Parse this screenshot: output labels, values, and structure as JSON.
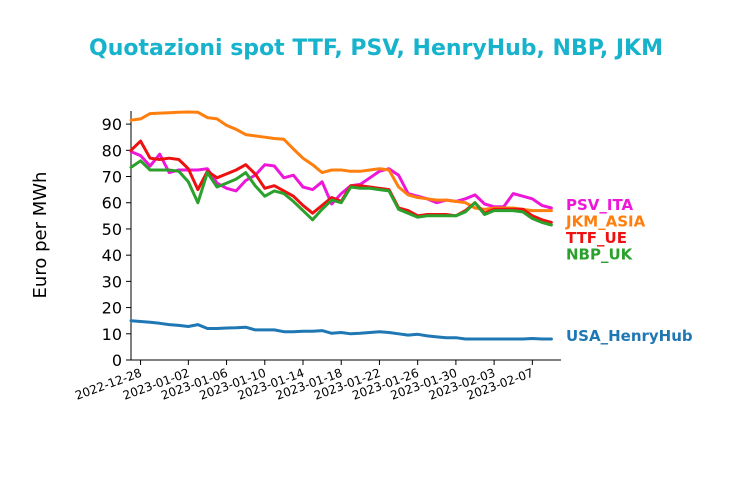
{
  "chart_data": {
    "type": "line",
    "title": "Quotazioni spot TTF, PSV, HenryHub, NBP, JKM",
    "title_color": "#17b3cc",
    "ylabel": "Euro per MWh",
    "xlabel": "",
    "ylim": [
      0,
      95
    ],
    "yticks": [
      0,
      10,
      20,
      30,
      40,
      50,
      60,
      70,
      80,
      90
    ],
    "x_range": [
      "2022-12-27",
      "2023-02-10"
    ],
    "xticks": [
      "2022-12-28",
      "2023-01-02",
      "2023-01-06",
      "2023-01-10",
      "2023-01-14",
      "2023-01-18",
      "2023-01-22",
      "2023-01-26",
      "2023-01-30",
      "2023-02-03",
      "2023-02-07"
    ],
    "grid": false,
    "legend_placement": "right of lines",
    "x": [
      "2022-12-27",
      "2022-12-28",
      "2022-12-29",
      "2022-12-30",
      "2022-12-31",
      "2023-01-01",
      "2023-01-02",
      "2023-01-03",
      "2023-01-04",
      "2023-01-05",
      "2023-01-06",
      "2023-01-07",
      "2023-01-08",
      "2023-01-09",
      "2023-01-10",
      "2023-01-11",
      "2023-01-12",
      "2023-01-13",
      "2023-01-14",
      "2023-01-15",
      "2023-01-16",
      "2023-01-17",
      "2023-01-18",
      "2023-01-19",
      "2023-01-20",
      "2023-01-21",
      "2023-01-22",
      "2023-01-23",
      "2023-01-24",
      "2023-01-25",
      "2023-01-26",
      "2023-01-27",
      "2023-01-28",
      "2023-01-29",
      "2023-01-30",
      "2023-01-31",
      "2023-02-01",
      "2023-02-02",
      "2023-02-03",
      "2023-02-04",
      "2023-02-05",
      "2023-02-06",
      "2023-02-07",
      "2023-02-08",
      "2023-02-09"
    ],
    "series": [
      {
        "name": "PSV_ITA",
        "color": "#ee16d8",
        "values": [
          79.5,
          78,
          74,
          78.5,
          71.5,
          72.5,
          72.5,
          72.5,
          73,
          67.5,
          65.5,
          64.5,
          68.5,
          70.5,
          74.5,
          74,
          69.5,
          70.5,
          66,
          65,
          68,
          59.5,
          63.5,
          66.5,
          67,
          69.5,
          72,
          73,
          70.5,
          63.5,
          62.5,
          61.5,
          60,
          61,
          60.5,
          61.5,
          63,
          59.5,
          58.5,
          58.5,
          63.5,
          62.5,
          61.5,
          59,
          58
        ]
      },
      {
        "name": "JKM_ASIA",
        "color": "#ff7f0e",
        "values": [
          91.5,
          92,
          94,
          94.2,
          94.3,
          94.5,
          94.6,
          94.5,
          92.5,
          92,
          89.5,
          88,
          86,
          85.5,
          85,
          84.5,
          84.2,
          80.5,
          77,
          74.5,
          71.5,
          72.5,
          72.5,
          72,
          72,
          72.5,
          73,
          72.5,
          66,
          63,
          62,
          61.5,
          61,
          61,
          60.5,
          60,
          58,
          57.5,
          58,
          58,
          58,
          57.5,
          57,
          57,
          57
        ]
      },
      {
        "name": "TTF_UE",
        "color": "#ee1111",
        "values": [
          80,
          83.5,
          77,
          76.5,
          77,
          76.5,
          73,
          65,
          72,
          69.5,
          71,
          72.5,
          74.5,
          71,
          65.5,
          66.5,
          64.5,
          62.5,
          59,
          56,
          59,
          62,
          60.5,
          66.5,
          66.5,
          66,
          65.5,
          65,
          58,
          57,
          55,
          55.5,
          55.5,
          55.5,
          55,
          57,
          60,
          56,
          57.5,
          57.5,
          57.5,
          57.5,
          55,
          53.5,
          52.5
        ]
      },
      {
        "name": "NBP_UK",
        "color": "#2ca02c",
        "values": [
          73.5,
          76,
          72.5,
          72.5,
          72.5,
          72,
          68,
          60,
          71.5,
          66,
          67.5,
          69,
          71.5,
          66.5,
          62.5,
          64.5,
          63.5,
          60.5,
          57,
          53.5,
          57.5,
          61,
          60,
          66,
          65.5,
          65.5,
          65,
          64.5,
          57.5,
          56,
          54.5,
          55,
          55,
          55,
          55,
          56.5,
          60,
          55.5,
          57,
          57,
          57,
          56.5,
          54,
          52.5,
          51.5
        ]
      },
      {
        "name": "USA_HenryHub",
        "color": "#1f77b4",
        "values": [
          15,
          14.7,
          14.4,
          14,
          13.5,
          13.2,
          12.8,
          13.5,
          12,
          12,
          12.2,
          12.3,
          12.5,
          11.5,
          11.5,
          11.5,
          10.8,
          10.8,
          11,
          11,
          11.2,
          10.2,
          10.5,
          10,
          10.2,
          10.5,
          10.8,
          10.5,
          10,
          9.5,
          9.8,
          9.2,
          8.8,
          8.5,
          8.5,
          8,
          8,
          8,
          8,
          8,
          8,
          8,
          8.2,
          8,
          8
        ]
      }
    ]
  }
}
